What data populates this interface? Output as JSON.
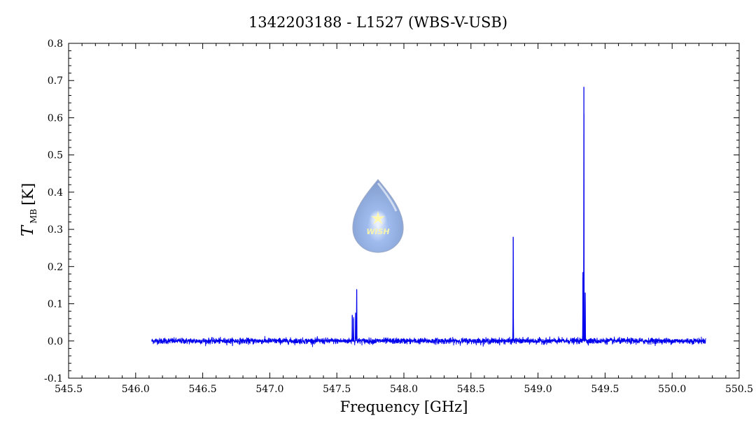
{
  "chart_data": {
    "type": "line",
    "title": "1342203188 - L1527 (WBS-V-USB)",
    "xlabel": "Frequency [GHz]",
    "ylabel_main": "T",
    "ylabel_sub": "MB",
    "ylabel_unit": "[K]",
    "xlim": [
      545.5,
      550.5
    ],
    "ylim": [
      -0.1,
      0.8
    ],
    "x_ticks": [
      545.5,
      546.0,
      546.5,
      547.0,
      547.5,
      548.0,
      548.5,
      549.0,
      549.5,
      550.0,
      550.5
    ],
    "x_tick_labels": [
      "545.5",
      "546.0",
      "546.5",
      "547.0",
      "547.5",
      "548.0",
      "548.5",
      "549.0",
      "549.5",
      "550.0",
      "550.5"
    ],
    "y_ticks": [
      -0.1,
      0.0,
      0.1,
      0.2,
      0.3,
      0.4,
      0.5,
      0.6,
      0.7,
      0.8
    ],
    "y_tick_labels": [
      "-0.1",
      "0.0",
      "0.1",
      "0.2",
      "0.3",
      "0.4",
      "0.5",
      "0.6",
      "0.7",
      "0.8"
    ],
    "grid": false,
    "series": [
      {
        "color": "#0000ee",
        "x_start": 546.12,
        "x_end": 550.25,
        "baseline": 0.0,
        "noise_rms": 0.004,
        "peaks": [
          {
            "x": 547.615,
            "y": 0.07
          },
          {
            "x": 547.625,
            "y": 0.06
          },
          {
            "x": 547.64,
            "y": 0.075
          },
          {
            "x": 547.648,
            "y": 0.138
          },
          {
            "x": 548.815,
            "y": 0.28
          },
          {
            "x": 549.335,
            "y": 0.185
          },
          {
            "x": 549.342,
            "y": 0.683
          },
          {
            "x": 549.352,
            "y": 0.13
          }
        ]
      }
    ]
  },
  "logo": {
    "text": "WISH",
    "icon": "wish-drop-icon"
  }
}
